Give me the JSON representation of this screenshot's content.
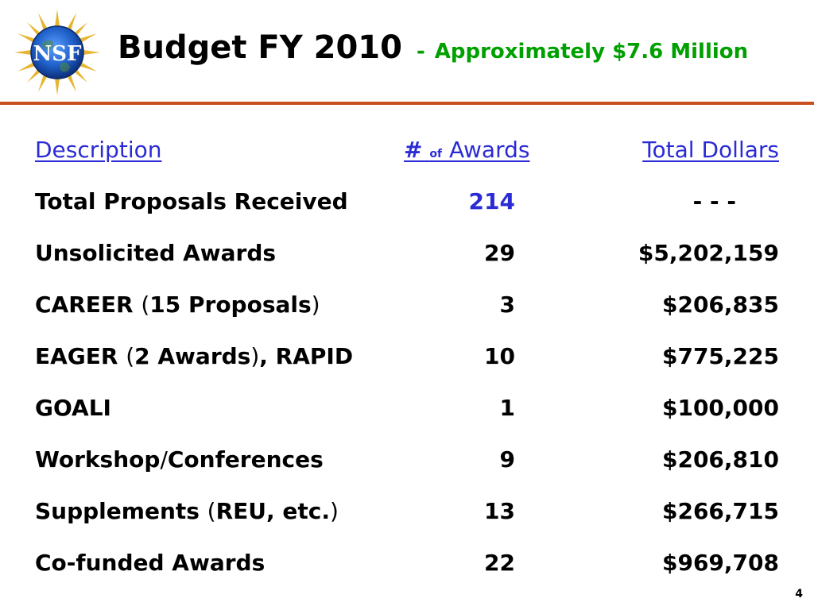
{
  "header": {
    "title": "Budget FY 2010",
    "dash": "-",
    "subtitle": "Approximately $7.6 Million",
    "logo_text": "NSF"
  },
  "colors": {
    "title": "#000000",
    "subtitle": "#00a000",
    "rule": "#c8501e",
    "header_link": "#2b2bd6"
  },
  "table": {
    "headers": {
      "description": "Description",
      "awards_hash": "#",
      "awards_of": "of",
      "awards_word": "Awards",
      "dollars": "Total Dollars"
    },
    "rows": [
      {
        "desc_a": "Total Proposals Received",
        "paren_open": "",
        "desc_b": "",
        "paren_close": "",
        "desc_c": "",
        "awards": "214",
        "dollars": "- - -"
      },
      {
        "desc_a": "Unsolicited Awards",
        "paren_open": "",
        "desc_b": "",
        "paren_close": "",
        "desc_c": "",
        "awards": "29",
        "dollars": "$5,202,159"
      },
      {
        "desc_a": "CAREER ",
        "paren_open": "(",
        "desc_b": "15 Proposals",
        "paren_close": ")",
        "desc_c": "",
        "awards": "3",
        "dollars": "$206,835"
      },
      {
        "desc_a": "EAGER ",
        "paren_open": "(",
        "desc_b": "2 Awards",
        "paren_close": ")",
        "desc_c": ", RAPID",
        "awards": "10",
        "dollars": "$775,225"
      },
      {
        "desc_a": "GOALI",
        "paren_open": "",
        "desc_b": "",
        "paren_close": "",
        "desc_c": "",
        "awards": "1",
        "dollars": "$100,000"
      },
      {
        "desc_a": "Workshop",
        "paren_open": "/",
        "desc_b": "Conferences",
        "paren_close": "",
        "desc_c": "",
        "awards": "9",
        "dollars": "$206,810"
      },
      {
        "desc_a": "Supplements ",
        "paren_open": "(",
        "desc_b": "REU, etc.",
        "paren_close": ")",
        "desc_c": "",
        "awards": "13",
        "dollars": "$266,715"
      },
      {
        "desc_a": "Co-funded Awards",
        "paren_open": "",
        "desc_b": "",
        "paren_close": "",
        "desc_c": "",
        "awards": "22",
        "dollars": "$969,708"
      }
    ]
  },
  "footer": {
    "page_number": "4"
  }
}
